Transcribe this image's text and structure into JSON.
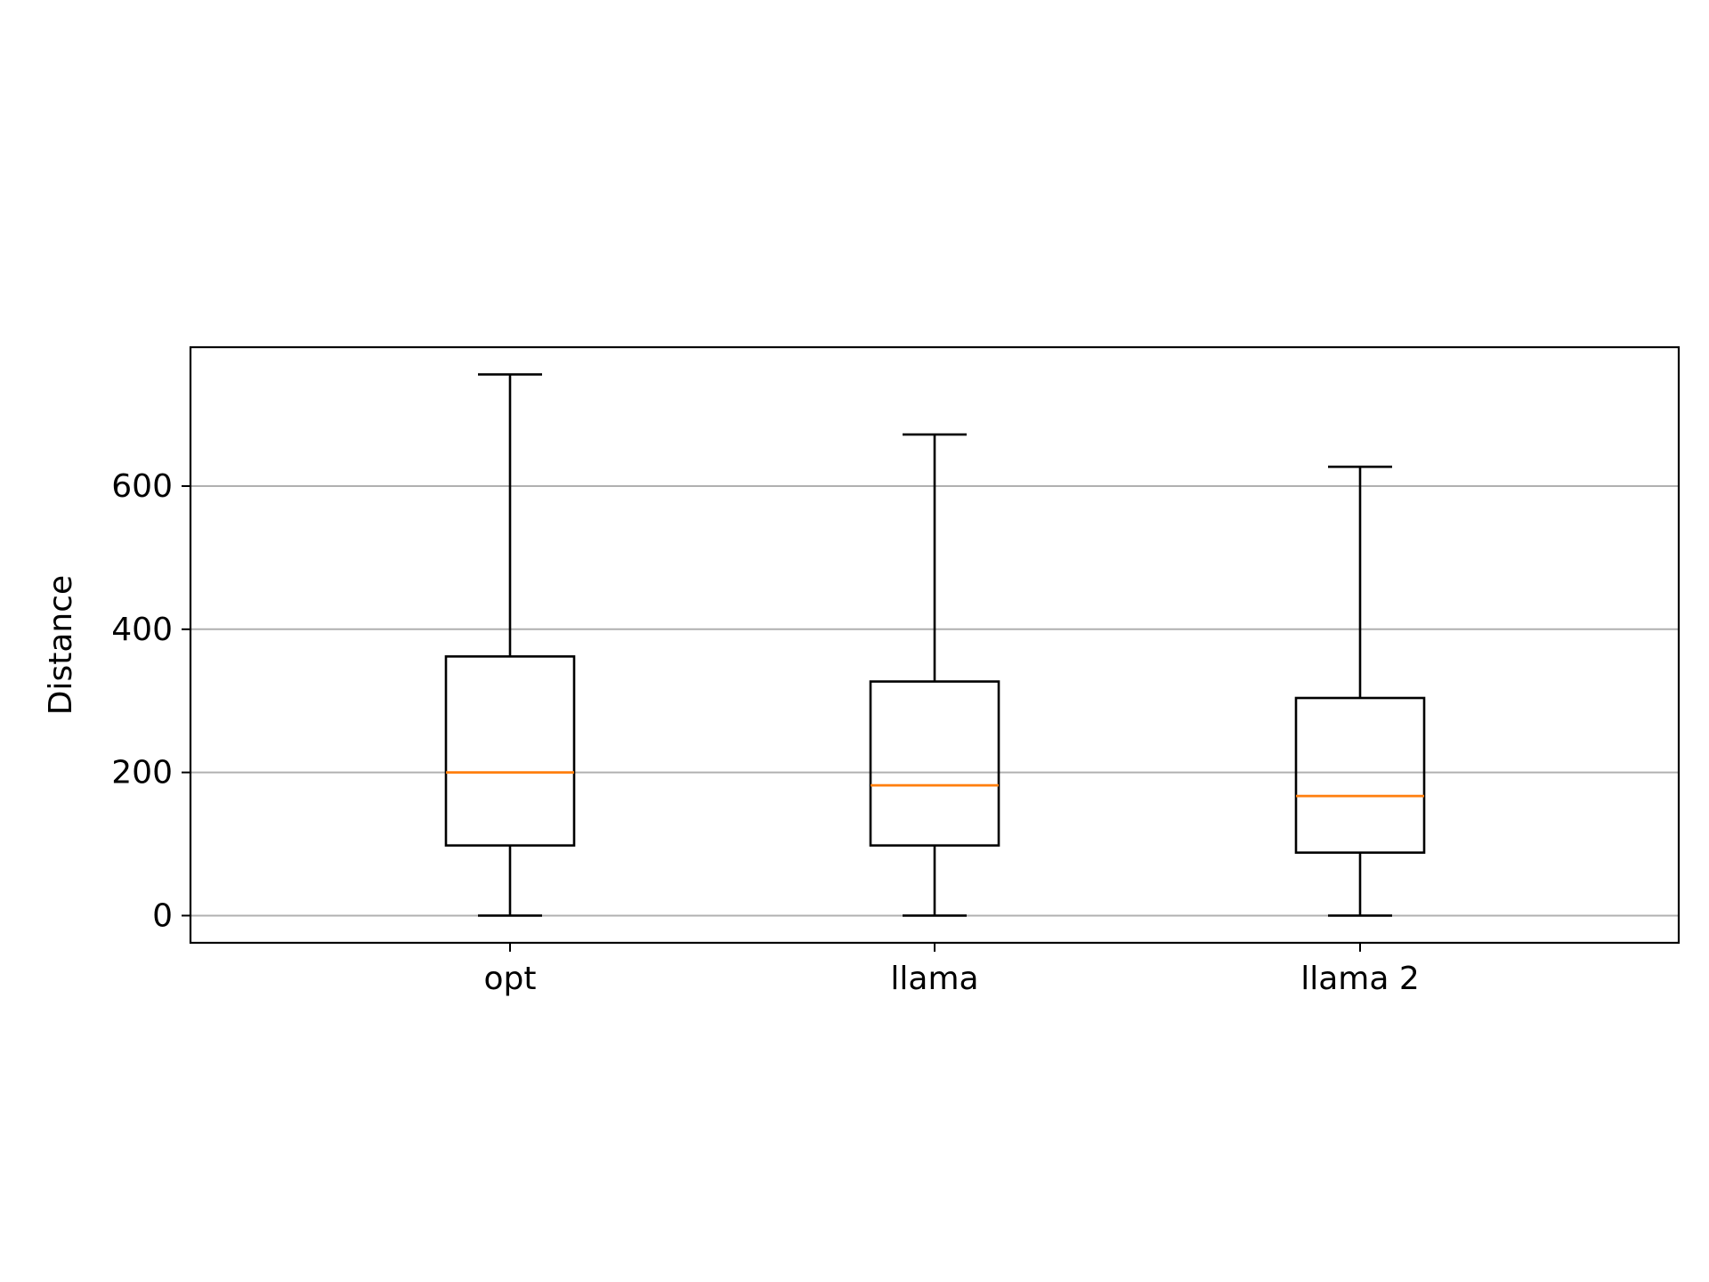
{
  "chart_data": {
    "type": "box",
    "categories": [
      "opt",
      "llama",
      "llama 2"
    ],
    "boxes": [
      {
        "category": "opt",
        "whisker_low": 0,
        "q1": 98,
        "median": 200,
        "q3": 362,
        "whisker_high": 756
      },
      {
        "category": "llama",
        "whisker_low": 0,
        "q1": 98,
        "median": 182,
        "q3": 327,
        "whisker_high": 672
      },
      {
        "category": "llama 2",
        "whisker_low": 0,
        "q1": 88,
        "median": 167,
        "q3": 304,
        "whisker_high": 627
      }
    ],
    "xlabel": "",
    "ylabel": "Distance",
    "ylim": [
      -38,
      794
    ],
    "yticks": [
      0,
      200,
      400,
      600
    ],
    "grid": "y",
    "colors": {
      "box": "#000000",
      "median": "#ff7f0e",
      "grid": "#b0b0b0",
      "axes": "#000000"
    }
  }
}
